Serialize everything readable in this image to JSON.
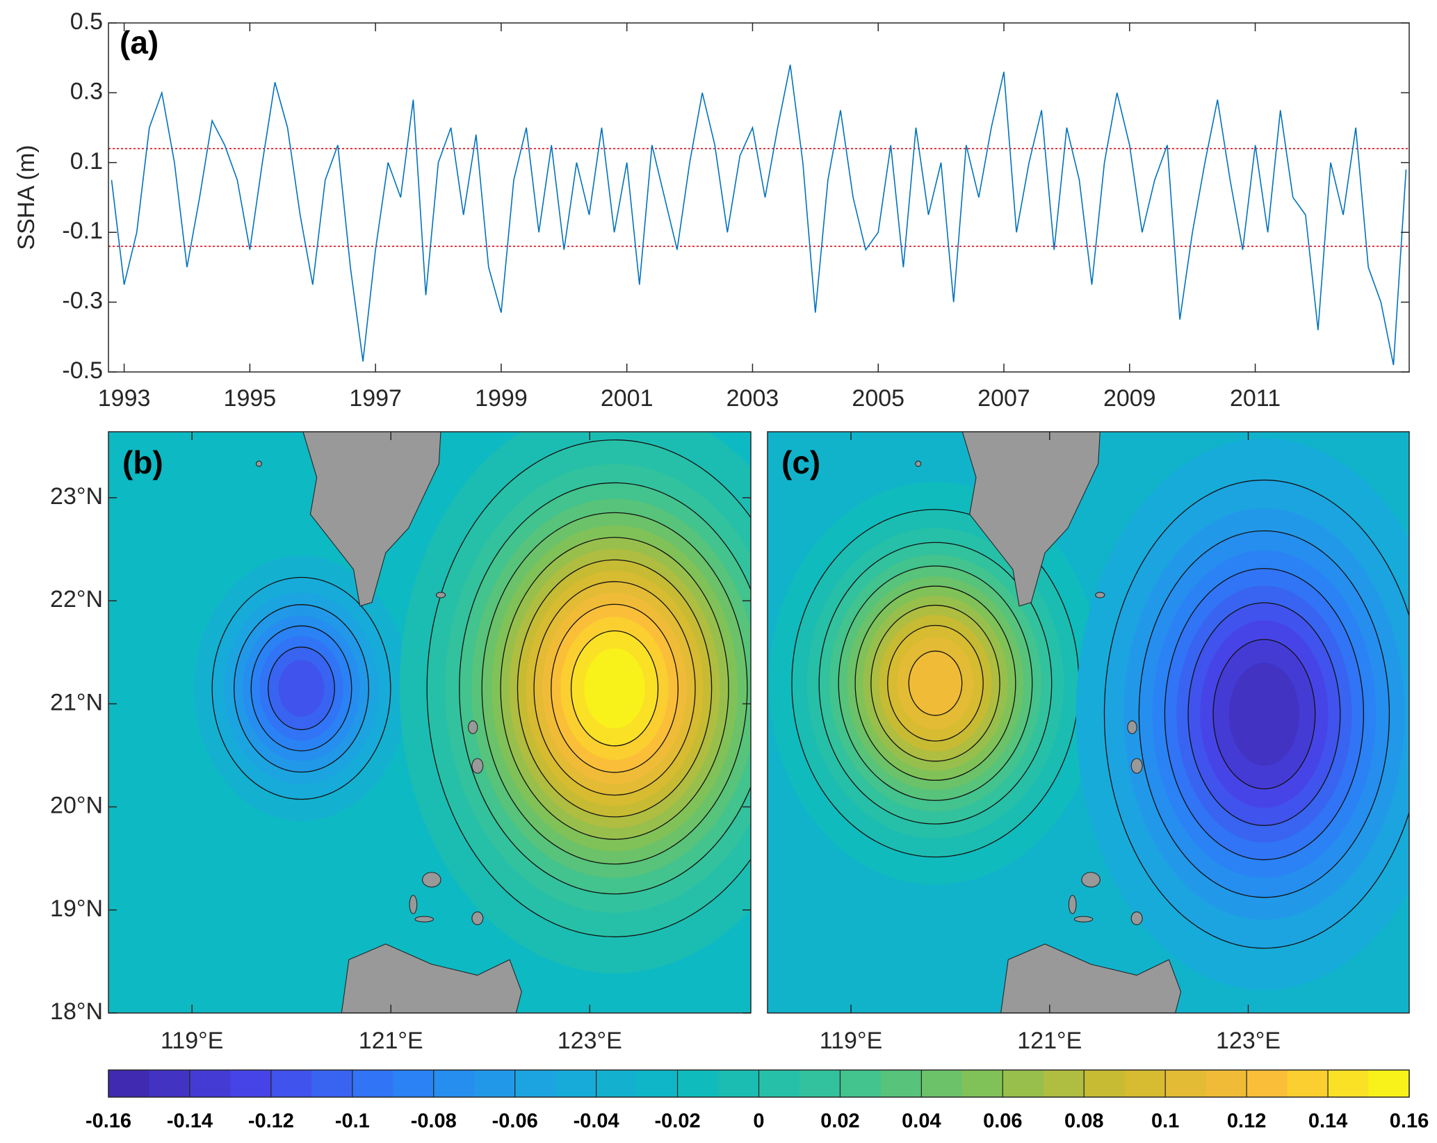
{
  "chart_data": [
    {
      "type": "line",
      "panel_label": "(a)",
      "y_label": "SSHA (m)",
      "x": [
        1992.8,
        1993.0,
        1993.2,
        1993.4,
        1993.6,
        1993.8,
        1994.0,
        1994.2,
        1994.4,
        1994.6,
        1994.8,
        1995.0,
        1995.2,
        1995.4,
        1995.6,
        1995.8,
        1996.0,
        1996.2,
        1996.4,
        1996.6,
        1996.8,
        1997.0,
        1997.2,
        1997.4,
        1997.6,
        1997.8,
        1998.0,
        1998.2,
        1998.4,
        1998.6,
        1998.8,
        1999.0,
        1999.2,
        1999.4,
        1999.6,
        1999.8,
        2000.0,
        2000.2,
        2000.4,
        2000.6,
        2000.8,
        2001.0,
        2001.2,
        2001.4,
        2001.6,
        2001.8,
        2002.0,
        2002.2,
        2002.4,
        2002.6,
        2002.8,
        2003.0,
        2003.2,
        2003.4,
        2003.6,
        2003.8,
        2004.0,
        2004.2,
        2004.4,
        2004.6,
        2004.8,
        2005.0,
        2005.2,
        2005.4,
        2005.6,
        2005.8,
        2006.0,
        2006.2,
        2006.4,
        2006.6,
        2006.8,
        2007.0,
        2007.2,
        2007.4,
        2007.6,
        2007.8,
        2008.0,
        2008.2,
        2008.4,
        2008.6,
        2008.8,
        2009.0,
        2009.2,
        2009.4,
        2009.6,
        2009.8,
        2010.0,
        2010.2,
        2010.4,
        2010.6,
        2010.8,
        2011.0,
        2011.2,
        2011.4,
        2011.6,
        2011.8,
        2012.0,
        2012.2,
        2012.4,
        2012.6,
        2012.8,
        2013.0,
        2013.2,
        2013.4
      ],
      "series": [
        {
          "color": "#0072bd",
          "values": [
            0.05,
            -0.25,
            -0.1,
            0.2,
            0.3,
            0.1,
            -0.2,
            0.0,
            0.22,
            0.15,
            0.05,
            -0.15,
            0.1,
            0.33,
            0.2,
            -0.05,
            -0.25,
            0.05,
            0.15,
            -0.2,
            -0.47,
            -0.15,
            0.1,
            0.0,
            0.28,
            -0.28,
            0.1,
            0.2,
            -0.05,
            0.18,
            -0.2,
            -0.33,
            0.05,
            0.2,
            -0.1,
            0.15,
            -0.15,
            0.1,
            -0.05,
            0.2,
            -0.1,
            0.1,
            -0.25,
            0.15,
            0.0,
            -0.15,
            0.1,
            0.3,
            0.15,
            -0.1,
            0.12,
            0.2,
            0.0,
            0.2,
            0.38,
            0.1,
            -0.33,
            0.05,
            0.25,
            0.0,
            -0.15,
            -0.1,
            0.15,
            -0.2,
            0.2,
            -0.05,
            0.1,
            -0.3,
            0.15,
            0.0,
            0.2,
            0.36,
            -0.1,
            0.1,
            0.25,
            -0.15,
            0.2,
            0.05,
            -0.25,
            0.1,
            0.3,
            0.15,
            -0.1,
            0.05,
            0.15,
            -0.35,
            -0.1,
            0.1,
            0.28,
            0.05,
            -0.15,
            0.15,
            -0.1,
            0.25,
            0.0,
            -0.05,
            -0.38,
            0.1,
            -0.05,
            0.2,
            -0.2,
            -0.3,
            -0.48,
            0.08
          ]
        }
      ],
      "thresholds": [
        0.14,
        -0.14
      ],
      "threshold_color": "#e8000b",
      "xlim": [
        1992.75,
        2013.45
      ],
      "xticks": [
        1993,
        1995,
        1997,
        1999,
        2001,
        2003,
        2005,
        2007,
        2009,
        2011
      ],
      "ylim": [
        -0.5,
        0.5
      ],
      "yticks": [
        -0.5,
        -0.3,
        -0.1,
        0.1,
        0.3,
        0.5
      ]
    },
    {
      "type": "contour-map",
      "panel_label": "(b)",
      "background": -0.02,
      "eddies": [
        {
          "lon": 120.1,
          "lat": 21.15,
          "value": -0.12,
          "radius_lon": 0.5,
          "radius_lat": 0.6
        },
        {
          "lon": 123.25,
          "lat": 21.15,
          "value": 0.16,
          "radius_lon": 0.9,
          "radius_lat": 1.15
        }
      ],
      "xlim": [
        118.16,
        124.62
      ],
      "xticks": [
        {
          "value": 119,
          "label": "119°E"
        },
        {
          "value": 121,
          "label": "121°E"
        },
        {
          "value": 123,
          "label": "123°E"
        }
      ],
      "ylim": [
        18,
        23.64
      ],
      "yticks": [
        {
          "value": 18,
          "label": "18°N"
        },
        {
          "value": 19,
          "label": "19°N"
        },
        {
          "value": 20,
          "label": "20°N"
        },
        {
          "value": 21,
          "label": "21°N"
        },
        {
          "value": 22,
          "label": "22°N"
        },
        {
          "value": 23,
          "label": "23°N"
        }
      ]
    },
    {
      "type": "contour-map",
      "panel_label": "(c)",
      "background": -0.03,
      "eddies": [
        {
          "lon": 119.85,
          "lat": 21.2,
          "value": 0.12,
          "radius_lon": 0.72,
          "radius_lat": 0.84
        },
        {
          "lon": 123.16,
          "lat": 20.9,
          "value": -0.15,
          "radius_lon": 0.85,
          "radius_lat": 1.2
        }
      ],
      "xlim": [
        118.16,
        124.62
      ],
      "xticks": [
        {
          "value": 119,
          "label": "119°E"
        },
        {
          "value": 121,
          "label": "121°E"
        },
        {
          "value": 123,
          "label": "123°E"
        }
      ],
      "ylim": [
        18,
        23.64
      ]
    },
    {
      "type": "colorbar",
      "lim": [
        -0.16,
        0.16
      ],
      "contour_step": 0.01,
      "colormap": [
        "#3e26a8",
        "#4744e8",
        "#2c7ef8",
        "#1ba6e0",
        "#0cbac0",
        "#35c39a",
        "#7cc25a",
        "#d0ba2f",
        "#fbbd3a",
        "#f9fb15"
      ],
      "ticks": [
        -0.16,
        -0.14,
        -0.12,
        -0.1,
        -0.08,
        -0.06,
        -0.04,
        -0.02,
        0,
        0.02,
        0.04,
        0.06,
        0.08,
        0.1,
        0.12,
        0.14,
        0.16
      ]
    }
  ]
}
